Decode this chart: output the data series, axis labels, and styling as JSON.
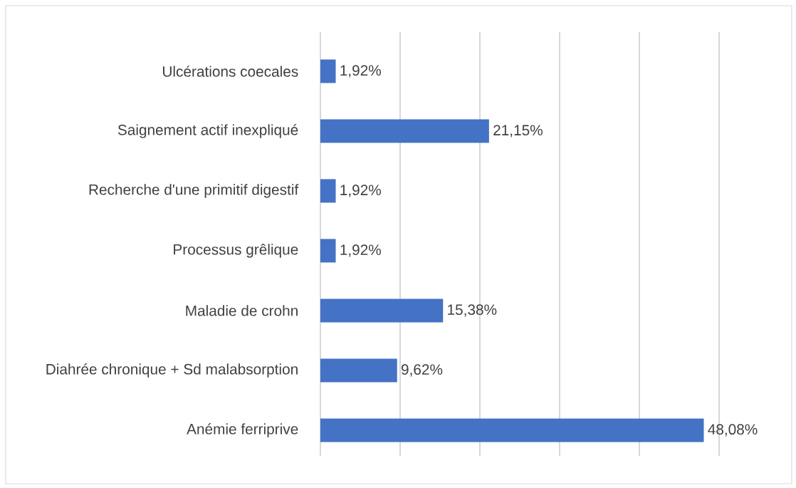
{
  "chart_data": {
    "type": "bar",
    "orientation": "horizontal",
    "categories": [
      "Ulcérations coecales",
      "Saignement actif inexpliqué",
      "Recherche d'une primitif digestif",
      "Processus grêlique",
      "Maladie de crohn",
      "Diahrée chronique + Sd malabsorption",
      "Anémie ferriprive"
    ],
    "values": [
      1.92,
      21.15,
      1.92,
      1.92,
      15.38,
      9.62,
      48.08
    ],
    "value_labels": [
      "1,92%",
      "21,15%",
      "1,92%",
      "1,92%",
      "15,38%",
      "9,62%",
      "48,08%"
    ],
    "color": "#4472c4",
    "xlim": [
      0,
      50
    ],
    "xticks": [
      0,
      10,
      20,
      30,
      40,
      50
    ],
    "grid": "x",
    "tick_labels": "y"
  }
}
